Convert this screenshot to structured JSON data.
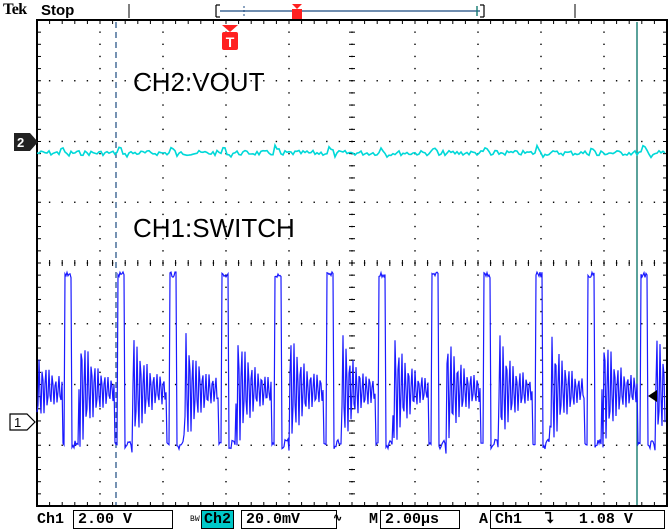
{
  "header": {
    "brand": "Tek",
    "run_state": "Stop",
    "trigger_marker": "T"
  },
  "annotations": {
    "ch2_label": "CH2:VOUT",
    "ch1_label": "CH1:SWITCH"
  },
  "channel_markers": {
    "ch2": "2",
    "ch1": "1"
  },
  "status_bar": {
    "ch1_name": "Ch1",
    "ch1_scale": "2.00 V",
    "bw_mark": "B",
    "bw_sub": "W",
    "ch2_name": "Ch2",
    "ch2_scale": "20.0mV",
    "ch2_coupling": "∿",
    "time_prefix": "M",
    "time_scale": "2.00µs",
    "trigger_mode": "A",
    "trigger_source": "Ch1",
    "trigger_slope": "⮧",
    "trigger_level": "1.08 V"
  },
  "colors": {
    "ch1": "#1a1aff",
    "ch2": "#00d8d8",
    "trigger": "#ff2020",
    "grid": "#000000"
  }
}
